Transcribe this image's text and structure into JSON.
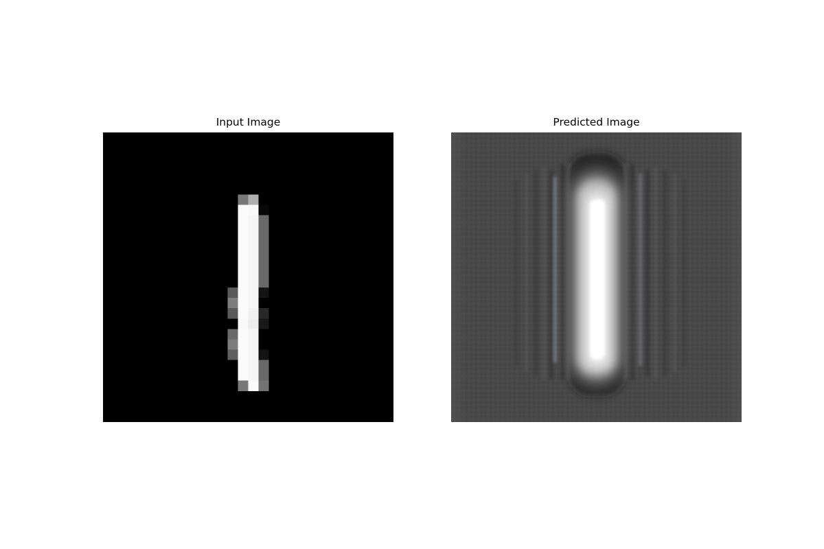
{
  "figure": {
    "panels": [
      {
        "title": "Input Image",
        "content": "pixelated handwritten digit 1, white on black"
      },
      {
        "title": "Predicted Image",
        "content": "blurred reconstruction of digit 1, light on dark gray"
      }
    ]
  }
}
